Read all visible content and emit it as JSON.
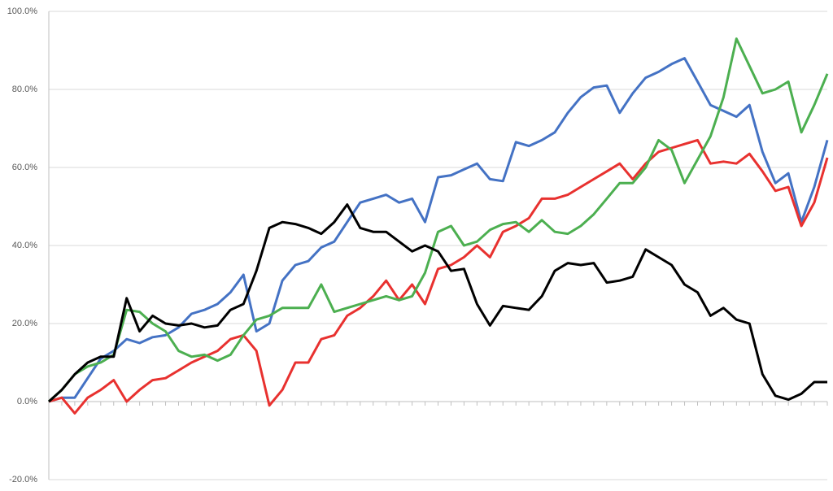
{
  "chart_data": {
    "type": "line",
    "categories": [
      null,
      null,
      null,
      null,
      null,
      null,
      null,
      null,
      null,
      null,
      null,
      null,
      null,
      null,
      null,
      null,
      null,
      null,
      null,
      null,
      null,
      null,
      null,
      null,
      null,
      null,
      null,
      null,
      null,
      null,
      null,
      null,
      null,
      null,
      null,
      null,
      null,
      null,
      null,
      null,
      null,
      null,
      null,
      null,
      null,
      null,
      null,
      null,
      null,
      null,
      null,
      null,
      null,
      null,
      null,
      null,
      null,
      null,
      null,
      null,
      null
    ],
    "series": [
      {
        "color": "#4472c4",
        "values": [
          0,
          1,
          1,
          6,
          11,
          13,
          16,
          15,
          16.5,
          17,
          19,
          22.5,
          23.5,
          25,
          28,
          32.5,
          18,
          20,
          31,
          35,
          36,
          39.5,
          41,
          46,
          51,
          52,
          53,
          51,
          52,
          46,
          57.5,
          58,
          59.5,
          61,
          57,
          56.5,
          66.5,
          65.5,
          67,
          69,
          74,
          78,
          80.5,
          81,
          74,
          79,
          83,
          84.5,
          86.5,
          88,
          82,
          76,
          74.5,
          73,
          76,
          64,
          56,
          58.5,
          46,
          55,
          67
        ]
      },
      {
        "color": "#e8312f",
        "values": [
          0,
          1,
          -3,
          1,
          3,
          5.5,
          0,
          3,
          5.5,
          6,
          8,
          10,
          11.5,
          13,
          16,
          17,
          13,
          -1,
          3,
          10,
          10,
          16,
          17,
          22,
          24,
          27,
          31,
          26,
          30,
          25,
          34,
          35,
          37,
          40,
          37,
          43.5,
          45,
          47,
          52,
          52,
          53,
          55,
          57,
          59,
          61,
          57,
          61,
          64,
          65,
          66,
          67,
          61,
          61.5,
          61,
          63.5,
          59,
          54,
          55,
          45,
          51,
          62.5
        ]
      },
      {
        "color": "#4caf50",
        "values": [
          0,
          3,
          7,
          9,
          10,
          12,
          23.5,
          23,
          20,
          18,
          13,
          11.5,
          12,
          10.5,
          12,
          17,
          21,
          22,
          24,
          24,
          24,
          30,
          23,
          24,
          25,
          26,
          27,
          26,
          27,
          33,
          43.5,
          45,
          40,
          41,
          44,
          45.5,
          46,
          43.5,
          46.5,
          43.5,
          43,
          45,
          48,
          52,
          56,
          56,
          60,
          67,
          64.5,
          56,
          62,
          68,
          78,
          93,
          86,
          79,
          80,
          82,
          69,
          76,
          84
        ]
      },
      {
        "color": "#000000",
        "values": [
          0,
          3,
          7,
          10,
          11.5,
          11.5,
          26.5,
          18,
          22,
          20,
          19.5,
          20,
          19,
          19.5,
          23.5,
          25,
          33.5,
          44.5,
          46,
          45.5,
          44.5,
          43,
          46,
          50.5,
          44.5,
          43.5,
          43.5,
          41,
          38.5,
          40,
          38.5,
          33.5,
          34,
          25,
          19.5,
          24.5,
          24,
          23.5,
          27,
          33.5,
          35.5,
          35,
          35.5,
          30.5,
          31,
          32,
          39,
          37,
          35,
          30,
          28,
          22,
          24,
          21,
          20,
          7,
          1.5,
          0.5,
          2,
          5,
          5
        ]
      }
    ],
    "ylim": [
      -20,
      100
    ],
    "yticks": [
      {
        "value": -20,
        "label": "-20.0%"
      },
      {
        "value": 0,
        "label": "0.0%"
      },
      {
        "value": 20,
        "label": "20.0%"
      },
      {
        "value": 40,
        "label": "40.0%"
      },
      {
        "value": 60,
        "label": "60.0%"
      },
      {
        "value": 80,
        "label": "80.0%"
      },
      {
        "value": 100,
        "label": "100.0%"
      }
    ],
    "grid": true
  }
}
